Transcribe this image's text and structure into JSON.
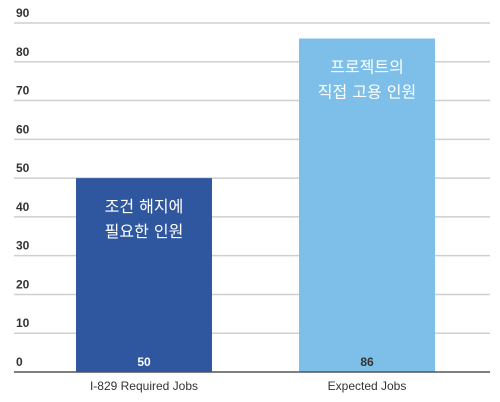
{
  "chart_data": {
    "type": "bar",
    "categories": [
      "I-829 Required Jobs",
      "Expected Jobs"
    ],
    "values": [
      50,
      86
    ],
    "value_labels": [
      "50",
      "86"
    ],
    "bar_annotations": [
      [
        "조건 해지에",
        "필요한 인원"
      ],
      [
        "프로젝트의",
        "직접 고용 인원"
      ]
    ],
    "colors": [
      "#2f57a0",
      "#7dbfe8"
    ],
    "value_label_colors": [
      "#ffffff",
      "#333333"
    ],
    "yticks": [
      "0",
      "10",
      "20",
      "30",
      "40",
      "50",
      "60",
      "70",
      "80",
      "90"
    ],
    "ylim": [
      0,
      90
    ],
    "grid": true,
    "title": "",
    "xlabel": "",
    "ylabel": ""
  }
}
